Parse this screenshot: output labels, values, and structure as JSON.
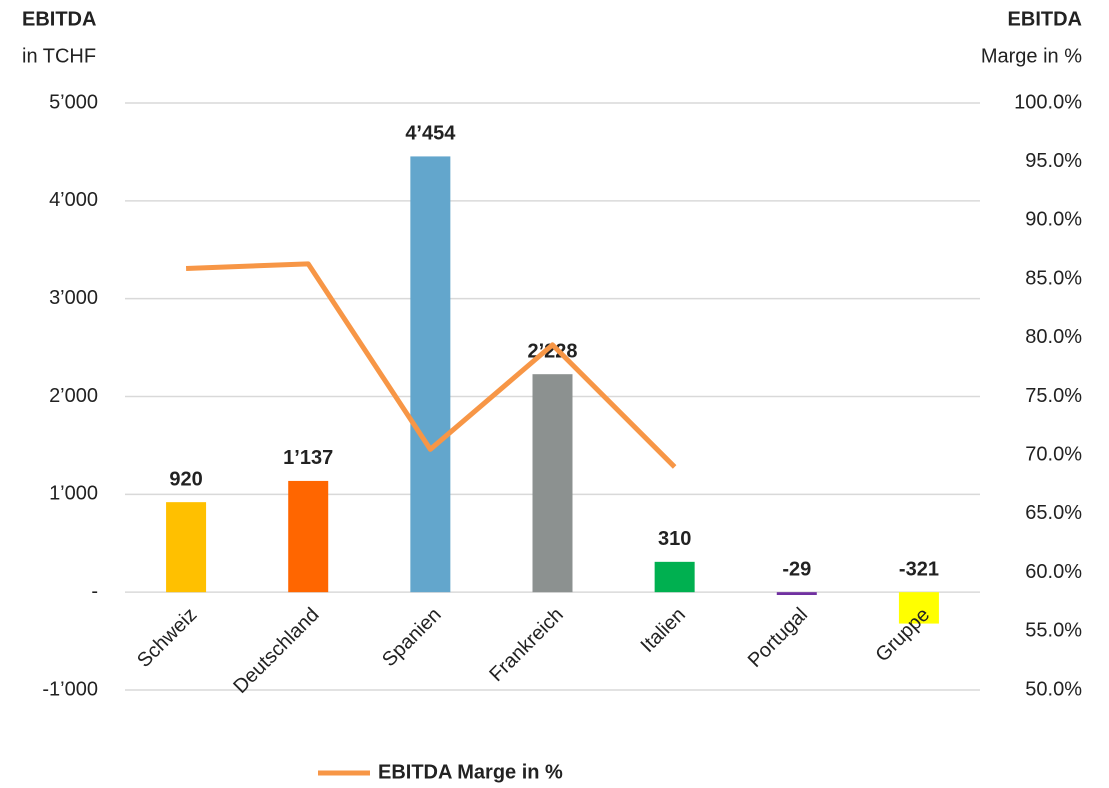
{
  "chart_data": {
    "type": "bar",
    "ylabel": [
      "EBITDA",
      "in TCHF"
    ],
    "y2label": [
      "EBITDA",
      "Marge in %"
    ],
    "categories": [
      "Schweiz",
      "Deutschland",
      "Spanien",
      "Frankreich",
      "Italien",
      "Portugal",
      "Gruppe"
    ],
    "series": [
      {
        "type": "bar",
        "colors": [
          "#ffc000",
          "#ff6600",
          "#63a6cc",
          "#8c9190",
          "#00b050",
          "#7030a0",
          "#ffff00"
        ],
        "values": [
          920,
          1137,
          4454,
          2228,
          310,
          -29,
          -321
        ],
        "value_labels": [
          "920",
          "1’137",
          "4’454",
          "2’228",
          "310",
          "-29",
          "-321"
        ]
      },
      {
        "type": "line",
        "name": "EBITDA Marge in %",
        "color": "#f79646",
        "axis": "y2",
        "values": [
          85.9,
          86.3,
          70.5,
          79.4,
          69.0,
          null,
          null
        ]
      }
    ],
    "ylim": [
      -1000,
      5000
    ],
    "yticks": [
      {
        "value": -1000,
        "label": "-1’000"
      },
      {
        "value": 0,
        "label": "-"
      },
      {
        "value": 1000,
        "label": "1’000"
      },
      {
        "value": 2000,
        "label": "2’000"
      },
      {
        "value": 3000,
        "label": "3’000"
      },
      {
        "value": 4000,
        "label": "4’000"
      },
      {
        "value": 5000,
        "label": "5’000"
      }
    ],
    "y2lim": [
      50,
      100
    ],
    "y2ticks": [
      {
        "value": 50,
        "label": "50.0%"
      },
      {
        "value": 55,
        "label": "55.0%"
      },
      {
        "value": 60,
        "label": "60.0%"
      },
      {
        "value": 65,
        "label": "65.0%"
      },
      {
        "value": 70,
        "label": "70.0%"
      },
      {
        "value": 75,
        "label": "75.0%"
      },
      {
        "value": 80,
        "label": "80.0%"
      },
      {
        "value": 85,
        "label": "85.0%"
      },
      {
        "value": 90,
        "label": "90.0%"
      },
      {
        "value": 95,
        "label": "95.0%"
      },
      {
        "value": 100,
        "label": "100.0%"
      }
    ],
    "grid": true,
    "legend": "bottom"
  }
}
